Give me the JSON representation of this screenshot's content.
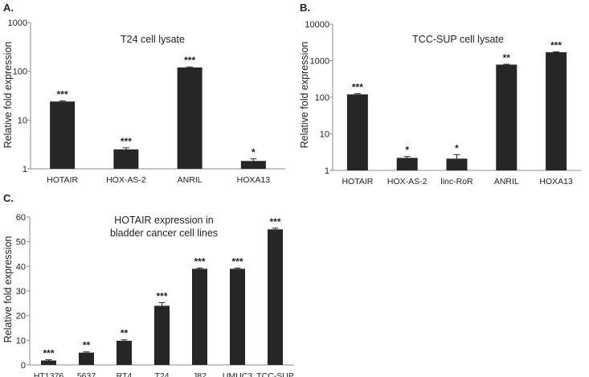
{
  "chart_data": [
    {
      "panel": "A.",
      "type": "bar",
      "title": "T24 cell lysate",
      "ylabel": "Relative fold expression",
      "xlabel": "",
      "yscale": "log",
      "ylim": [
        1,
        1000
      ],
      "yticks": [
        1,
        10,
        100,
        1000
      ],
      "ytick_labels": [
        "1",
        "10",
        "100",
        "1000"
      ],
      "categories": [
        "HOTAIR",
        "HOX-AS-2",
        "ANRIL",
        "HOXA13"
      ],
      "values": [
        24,
        2.5,
        120,
        1.45
      ],
      "errors": [
        0.8,
        0.2,
        3,
        0.15
      ],
      "significance": [
        "***",
        "***",
        "***",
        "*"
      ]
    },
    {
      "panel": "B.",
      "type": "bar",
      "title": "TCC-SUP cell lysate",
      "ylabel": "Relative fold expression",
      "xlabel": "",
      "yscale": "log",
      "ylim": [
        1,
        10000
      ],
      "yticks": [
        1,
        10,
        100,
        1000,
        10000
      ],
      "ytick_labels": [
        "1",
        "10",
        "100",
        "1000",
        "10000"
      ],
      "categories": [
        "HOTAIR",
        "HOX-AS-2",
        "linc-RoR",
        "ANRIL",
        "HOXA13"
      ],
      "values": [
        120,
        2.2,
        2.1,
        780,
        1700
      ],
      "errors": [
        5,
        0.2,
        0.6,
        20,
        50
      ],
      "significance": [
        "***",
        "*",
        "*",
        "**",
        "***"
      ]
    },
    {
      "panel": "C.",
      "type": "bar",
      "title_lines": [
        "HOTAIR expression in",
        "bladder cancer cell lines"
      ],
      "ylabel": "Relative fold expression",
      "xlabel": "",
      "yscale": "linear",
      "ylim": [
        0,
        60
      ],
      "yticks": [
        0,
        10,
        20,
        30,
        40,
        50,
        60
      ],
      "ytick_labels": [
        "0",
        "10",
        "20",
        "30",
        "40",
        "50",
        "60"
      ],
      "categories": [
        "HT1376",
        "5637",
        "RT4",
        "T24",
        "J82",
        "UMUC3",
        "TCC-SUP"
      ],
      "values": [
        1.8,
        5,
        9.8,
        24,
        39,
        39,
        55
      ],
      "errors": [
        0.3,
        0.3,
        0.4,
        1.3,
        0.3,
        0.3,
        0.5
      ],
      "significance": [
        "***",
        "**",
        "**",
        "***",
        "***",
        "***",
        "***"
      ]
    }
  ]
}
